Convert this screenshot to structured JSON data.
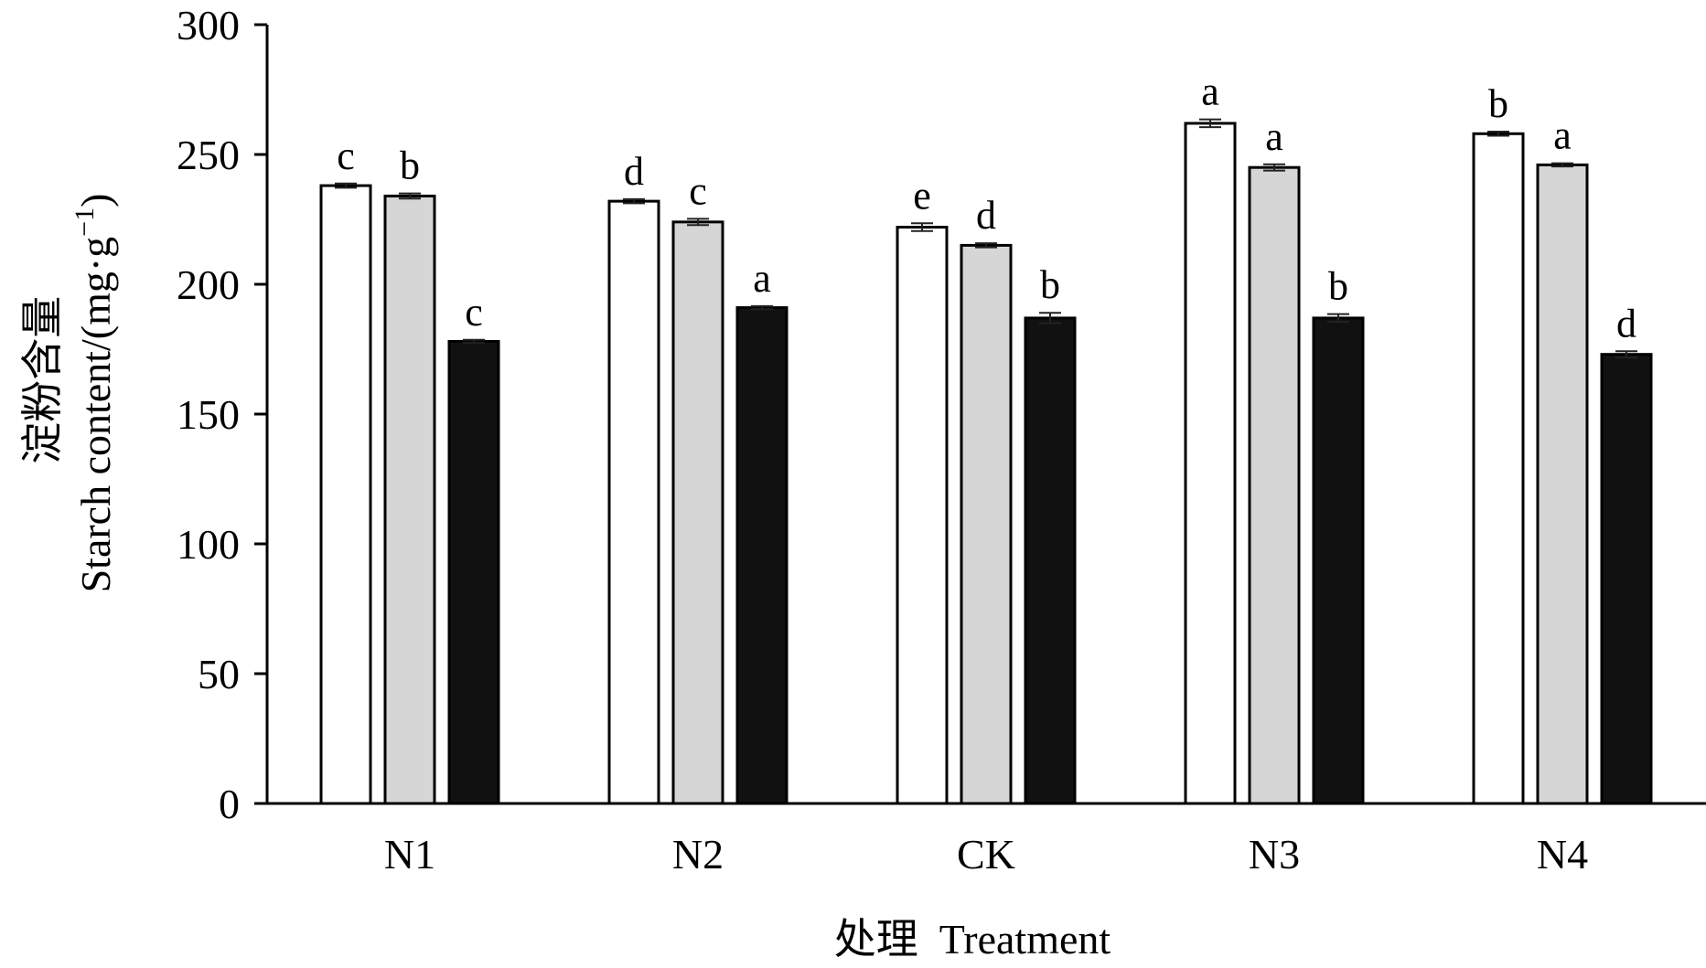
{
  "chart_data": {
    "type": "bar",
    "xlabel": "处理  Treatment",
    "ylabel": "淀粉含量 Starch content/(mg·g⁻¹)",
    "ylabel_cn": "淀粉含量",
    "ylabel_en": "Starch content/(mg·g",
    "ylabel_sup": "−1",
    "ylabel_close": ")",
    "ylim": [
      0,
      300
    ],
    "yticks": [
      0,
      50,
      100,
      150,
      200,
      250,
      300
    ],
    "categories": [
      "N1",
      "N2",
      "CK",
      "N3",
      "N4"
    ],
    "series": [
      {
        "fill": "#ffffff",
        "values": [
          238,
          232,
          222,
          262,
          258
        ],
        "errors": [
          0.8,
          0.8,
          1.5,
          1.5,
          0.8
        ],
        "letters": [
          "c",
          "d",
          "e",
          "a",
          "b"
        ]
      },
      {
        "fill": "#d6d6d6",
        "values": [
          234,
          224,
          215,
          245,
          246
        ],
        "errors": [
          1.0,
          1.2,
          0.8,
          1.2,
          0.6
        ],
        "letters": [
          "b",
          "c",
          "d",
          "a",
          "a"
        ]
      },
      {
        "fill": "#111111",
        "values": [
          178,
          191,
          187,
          187,
          173
        ],
        "errors": [
          0.6,
          0.6,
          2.0,
          1.5,
          1.2
        ],
        "letters": [
          "c",
          "a",
          "b",
          "b",
          "d"
        ]
      }
    ],
    "grid": false,
    "legend": "none"
  }
}
